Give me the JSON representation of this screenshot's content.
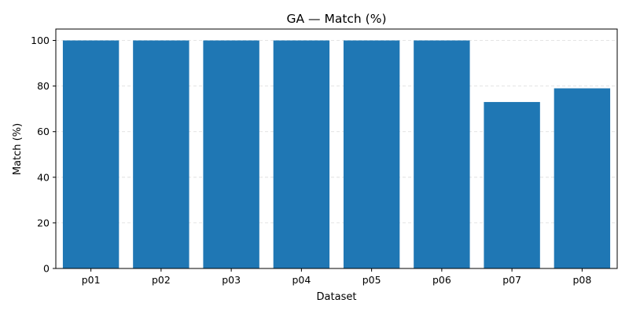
{
  "chart_data": {
    "type": "bar",
    "title": "GA — Match (%)",
    "xlabel": "Dataset",
    "ylabel": "Match (%)",
    "categories": [
      "p01",
      "p02",
      "p03",
      "p04",
      "p05",
      "p06",
      "p07",
      "p08"
    ],
    "values": [
      100,
      100,
      100,
      100,
      100,
      100,
      73,
      79
    ],
    "ylim": [
      0,
      105
    ],
    "yticks": [
      0,
      20,
      40,
      60,
      80,
      100
    ],
    "grid": "y-dashed",
    "bar_color": "#1f77b4"
  }
}
